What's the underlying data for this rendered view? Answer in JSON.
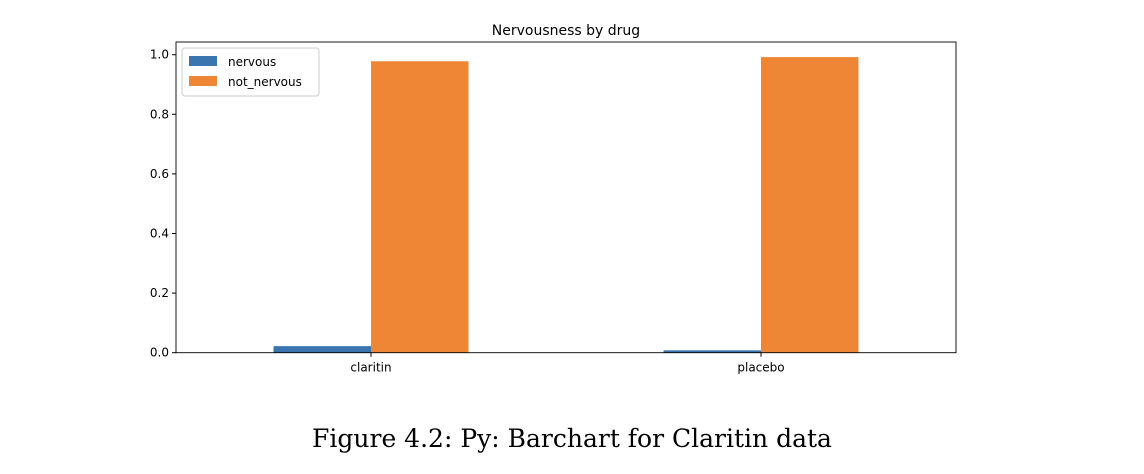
{
  "chart_data": {
    "type": "bar",
    "title": "Nervousness by drug",
    "categories": [
      "claritin",
      "placebo"
    ],
    "series": [
      {
        "name": "nervous",
        "values": [
          0.022,
          0.008
        ],
        "color": "#3b75af"
      },
      {
        "name": "not_nervous",
        "values": [
          0.978,
          0.992
        ],
        "color": "#ef8636"
      }
    ],
    "xlabel": "",
    "ylabel": "",
    "ylim": [
      0,
      1.04
    ],
    "yticks": [
      "0.0",
      "0.2",
      "0.4",
      "0.6",
      "0.8",
      "1.0"
    ],
    "grid": false,
    "legend": "top-left"
  },
  "caption": "Figure 4.2: Py: Barchart for Claritin data"
}
